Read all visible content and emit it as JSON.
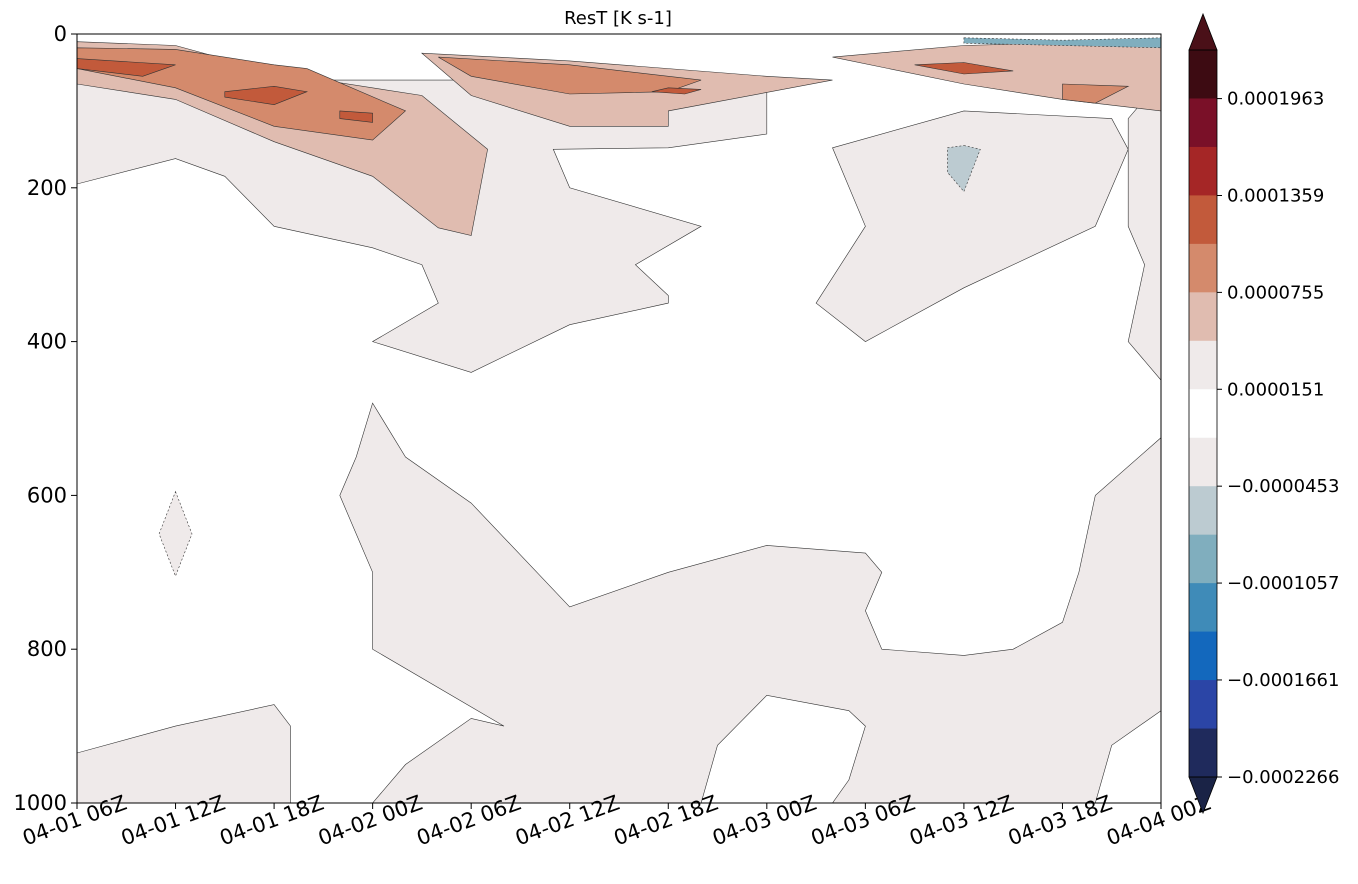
{
  "chart_data": {
    "type": "contour",
    "title": "ResT [K s-1]",
    "xlabel": "",
    "ylabel": "",
    "x_ticks": [
      "04-01 06Z",
      "04-01 12Z",
      "04-01 18Z",
      "04-02 00Z",
      "04-02 06Z",
      "04-02 12Z",
      "04-02 18Z",
      "04-03 00Z",
      "04-03 06Z",
      "04-03 12Z",
      "04-03 18Z",
      "04-04 00Z"
    ],
    "xlim": [
      "04-01 06Z",
      "04-04 00Z"
    ],
    "y_ticks": [
      0,
      200,
      400,
      600,
      800,
      1000
    ],
    "ylim": [
      1000,
      0
    ],
    "y_inverted": true,
    "grid": false,
    "colorbar": {
      "orientation": "vertical",
      "placement": "right",
      "extend": "both",
      "tick_labels": [
        "0.0001963",
        "0.0001359",
        "0.0000755",
        "0.0000151",
        "−0.0000453",
        "−0.0001057",
        "−0.0001661",
        "−0.0002266"
      ],
      "tick_values": [
        0.0001963,
        0.0001359,
        7.55e-05,
        1.51e-05,
        -4.53e-05,
        -0.0001057,
        -0.0001661,
        -0.0002266
      ],
      "levels": [
        -0.0002266,
        -0.0001963,
        -0.0001661,
        -0.0001359,
        -0.0001057,
        -7.55e-05,
        -4.53e-05,
        -1.51e-05,
        1.51e-05,
        4.53e-05,
        7.55e-05,
        0.0001057,
        0.0001359,
        0.0001661,
        0.0001963,
        0.0002266
      ],
      "colors": [
        "#1f2a5c",
        "#2b45a6",
        "#1368bd",
        "#3f8bb8",
        "#80aebe",
        "#bccbd1",
        "#efeaea",
        "#ffffff",
        "#efeaea",
        "#e0bcb0",
        "#d48a6c",
        "#c25a3b",
        "#a52626",
        "#7a1028",
        "#3d0b12"
      ],
      "under_color": "#1a2346",
      "over_color": "#4a1018"
    },
    "regions": [
      {
        "level": "0.0000151 to 0.0000453",
        "color": "#efeaea",
        "points": [
          [
            "04-01 06Z",
            195
          ],
          [
            "04-01 12Z",
            162
          ],
          [
            "04-01 15Z",
            185
          ],
          [
            "04-01 18Z",
            250
          ],
          [
            "04-02 00Z",
            278
          ],
          [
            "04-02 03Z",
            300
          ],
          [
            "04-02 04Z",
            350
          ],
          [
            "04-02 00Z",
            400
          ],
          [
            "04-02 06Z",
            440
          ],
          [
            "04-02 12Z",
            378
          ],
          [
            "04-02 18Z",
            350
          ],
          [
            "04-02 18Z",
            340
          ],
          [
            "04-02 16Z",
            300
          ],
          [
            "04-02 20Z",
            250
          ],
          [
            "04-02 12Z",
            200
          ],
          [
            "04-02 11Z",
            150
          ],
          [
            "04-02 18Z",
            148
          ],
          [
            "04-03 00Z",
            130
          ],
          [
            "04-03 00Z",
            70
          ],
          [
            "04-02 12Z",
            60
          ],
          [
            "04-01 06Z",
            60
          ]
        ]
      },
      {
        "level": "0.0000151 to 0.0000453",
        "color": "#efeaea",
        "points": [
          [
            "04-03 04Z",
            148
          ],
          [
            "04-03 12Z",
            100
          ],
          [
            "04-03 21Z",
            110
          ],
          [
            "04-03 22Z",
            150
          ],
          [
            "04-03 20Z",
            250
          ],
          [
            "04-03 12Z",
            330
          ],
          [
            "04-03 06Z",
            400
          ],
          [
            "04-03 03Z",
            350
          ],
          [
            "04-03 06Z",
            250
          ]
        ]
      },
      {
        "level": "0.0000151 to 0.0000453",
        "color": "#efeaea",
        "points": [
          [
            "04-04 00Z",
            60
          ],
          [
            "04-03 22Z",
            110
          ],
          [
            "04-03 22Z",
            250
          ],
          [
            "04-03 23Z",
            300
          ],
          [
            "04-03 22Z",
            400
          ],
          [
            "04-04 00Z",
            450
          ]
        ]
      },
      {
        "level": "-0.0000453 to -0.0000151",
        "color": "#efeaea",
        "points": [
          [
            "04-01 12Z",
            595
          ],
          [
            "04-01 13Z",
            650
          ],
          [
            "04-01 12Z",
            705
          ],
          [
            "04-01 11Z",
            650
          ]
        ]
      },
      {
        "level": "0.0000151 to 0.0000453",
        "color": "#efeaea",
        "points": [
          [
            "04-02 00Z",
            480
          ],
          [
            "04-02 02Z",
            550
          ],
          [
            "04-02 06Z",
            610
          ],
          [
            "04-02 10Z",
            700
          ],
          [
            "04-02 12Z",
            745
          ],
          [
            "04-02 18Z",
            700
          ],
          [
            "04-03 00Z",
            665
          ],
          [
            "04-03 06Z",
            675
          ],
          [
            "04-03 07Z",
            700
          ],
          [
            "04-03 06Z",
            750
          ],
          [
            "04-03 07Z",
            800
          ],
          [
            "04-03 12Z",
            808
          ],
          [
            "04-03 15Z",
            800
          ],
          [
            "04-03 18Z",
            765
          ],
          [
            "04-03 19Z",
            700
          ],
          [
            "04-03 20Z",
            600
          ],
          [
            "04-04 00Z",
            525
          ],
          [
            "04-04 00Z",
            880
          ],
          [
            "04-03 21Z",
            925
          ],
          [
            "04-03 20Z",
            1000
          ],
          [
            "04-03 04Z",
            1000
          ],
          [
            "04-03 05Z",
            970
          ],
          [
            "04-03 06Z",
            900
          ],
          [
            "04-03 05Z",
            880
          ],
          [
            "04-03 00Z",
            860
          ],
          [
            "04-02 21Z",
            925
          ],
          [
            "04-02 20Z",
            1000
          ],
          [
            "04-02 00Z",
            1000
          ],
          [
            "04-02 02Z",
            950
          ],
          [
            "04-02 06Z",
            890
          ],
          [
            "04-02 08Z",
            900
          ],
          [
            "04-02 00Z",
            800
          ],
          [
            "04-02 00Z",
            750
          ],
          [
            "04-02 00Z",
            700
          ],
          [
            "04-01 23Z",
            650
          ],
          [
            "04-01 22Z",
            600
          ],
          [
            "04-01 23Z",
            550
          ]
        ]
      },
      {
        "level": "0.0000151 to 0.0000453",
        "color": "#efeaea",
        "points": [
          [
            "04-01 06Z",
            935
          ],
          [
            "04-01 12Z",
            900
          ],
          [
            "04-01 18Z",
            872
          ],
          [
            "04-01 19Z",
            900
          ],
          [
            "04-01 19Z",
            1000
          ],
          [
            "04-01 06Z",
            1000
          ]
        ]
      },
      {
        "level": "0.0000453 to 0.0000755",
        "color": "#e0bcb0",
        "points": [
          [
            "04-01 06Z",
            10
          ],
          [
            "04-01 12Z",
            15
          ],
          [
            "04-01 18Z",
            50
          ],
          [
            "04-02 03Z",
            80
          ],
          [
            "04-02 07Z",
            150
          ],
          [
            "04-02 06Z",
            262
          ],
          [
            "04-02 04Z",
            252
          ],
          [
            "04-02 00Z",
            185
          ],
          [
            "04-01 18Z",
            140
          ],
          [
            "04-01 12Z",
            85
          ],
          [
            "04-01 06Z",
            65
          ]
        ]
      },
      {
        "level": "0.0000453 to 0.0000755",
        "color": "#e0bcb0",
        "points": [
          [
            "04-02 03Z",
            25
          ],
          [
            "04-02 12Z",
            35
          ],
          [
            "04-03 00Z",
            55
          ],
          [
            "04-03 04Z",
            60
          ],
          [
            "04-02 18Z",
            100
          ],
          [
            "04-02 18Z",
            120
          ],
          [
            "04-02 12Z",
            120
          ],
          [
            "04-02 06Z",
            80
          ]
        ]
      },
      {
        "level": "0.0000453 to 0.0000755",
        "color": "#e0bcb0",
        "points": [
          [
            "04-03 04Z",
            30
          ],
          [
            "04-03 12Z",
            15
          ],
          [
            "04-04 00Z",
            8
          ],
          [
            "04-04 00Z",
            100
          ],
          [
            "04-03 18Z",
            85
          ],
          [
            "04-03 12Z",
            65
          ]
        ]
      },
      {
        "level": "0.0000755 to 0.0001057",
        "color": "#d48a6c",
        "points": [
          [
            "04-01 06Z",
            18
          ],
          [
            "04-01 12Z",
            20
          ],
          [
            "04-01 18Z",
            40
          ],
          [
            "04-01 20Z",
            45
          ],
          [
            "04-02 02Z",
            100
          ],
          [
            "04-02 00Z",
            138
          ],
          [
            "04-01 18Z",
            120
          ],
          [
            "04-01 12Z",
            70
          ],
          [
            "04-01 06Z",
            45
          ]
        ]
      },
      {
        "level": "0.0000755 to 0.0001057",
        "color": "#d48a6c",
        "points": [
          [
            "04-02 04Z",
            30
          ],
          [
            "04-02 12Z",
            40
          ],
          [
            "04-02 20Z",
            60
          ],
          [
            "04-02 18Z",
            75
          ],
          [
            "04-02 12Z",
            78
          ],
          [
            "04-02 06Z",
            55
          ]
        ]
      },
      {
        "level": "0.0000755 to 0.0001057",
        "color": "#d48a6c",
        "points": [
          [
            "04-03 18Z",
            65
          ],
          [
            "04-03 22Z",
            68
          ],
          [
            "04-03 20Z",
            90
          ],
          [
            "04-03 18Z",
            85
          ]
        ]
      },
      {
        "level": "0.0001057 to 0.0001359",
        "color": "#c25a3b",
        "points": [
          [
            "04-01 06Z",
            32
          ],
          [
            "04-01 12Z",
            40
          ],
          [
            "04-01 10Z",
            55
          ],
          [
            "04-01 06Z",
            45
          ]
        ]
      },
      {
        "level": "0.0001057 to 0.0001359",
        "color": "#c25a3b",
        "points": [
          [
            "04-01 15Z",
            75
          ],
          [
            "04-01 18Z",
            68
          ],
          [
            "04-01 20Z",
            75
          ],
          [
            "04-01 18Z",
            92
          ],
          [
            "04-01 15Z",
            82
          ]
        ]
      },
      {
        "level": "0.0001057 to 0.0001359",
        "color": "#c25a3b",
        "points": [
          [
            "04-01 22Z",
            100
          ],
          [
            "04-02 00Z",
            103
          ],
          [
            "04-02 00Z",
            115
          ],
          [
            "04-01 22Z",
            110
          ]
        ]
      },
      {
        "level": "0.0001057 to 0.0001359",
        "color": "#c25a3b",
        "points": [
          [
            "04-03 09Z",
            40
          ],
          [
            "04-03 12Z",
            37
          ],
          [
            "04-03 15Z",
            48
          ],
          [
            "04-03 12Z",
            52
          ]
        ]
      },
      {
        "level": "0.0001057 to 0.0001359",
        "color": "#c25a3b",
        "points": [
          [
            "04-02 18Z",
            70
          ],
          [
            "04-02 20Z",
            72
          ],
          [
            "04-02 19Z",
            78
          ],
          [
            "04-02 17Z",
            75
          ]
        ]
      },
      {
        "level": "-0.0000755 to -0.0000453",
        "color": "#bccbd1",
        "points": [
          [
            "04-03 12Z",
            145
          ],
          [
            "04-03 13Z",
            150
          ],
          [
            "04-03 12Z",
            205
          ],
          [
            "04-03 11Z",
            180
          ],
          [
            "04-03 11Z",
            148
          ]
        ]
      },
      {
        "level": "-0.0001057 to -0.0000755",
        "color": "#80aebe",
        "points": [
          [
            "04-03 12Z",
            5
          ],
          [
            "04-03 18Z",
            8
          ],
          [
            "04-04 00Z",
            5
          ],
          [
            "04-04 00Z",
            18
          ],
          [
            "04-03 18Z",
            15
          ],
          [
            "04-03 12Z",
            12
          ]
        ]
      }
    ]
  }
}
